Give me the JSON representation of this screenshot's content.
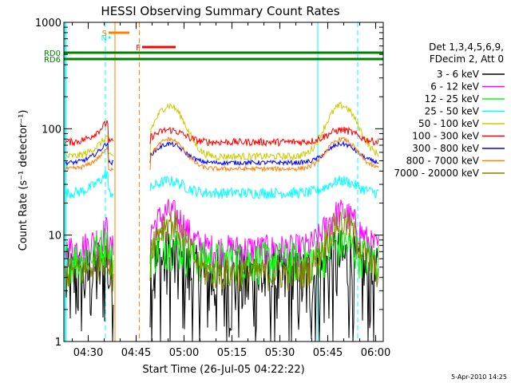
{
  "chart_data": {
    "type": "line",
    "title": "HESSI Observing Summary Count Rates",
    "xlabel": "Start Time (26-Jul-05 04:22:22)",
    "ylabel": "Count Rate (s⁻¹ detector⁻¹)",
    "ylog": true,
    "ylim": [
      1,
      1000
    ],
    "xlim_minutes_after_04_22_22": [
      0,
      100
    ],
    "yticks": [
      1,
      10,
      100,
      1000
    ],
    "ytick_labels": [
      "1",
      "10",
      "100",
      "1000"
    ],
    "xtick_labels": [
      "04:30",
      "04:45",
      "05:00",
      "05:15",
      "05:30",
      "05:45",
      "06:00"
    ],
    "xtick_minutes": [
      7.63,
      22.63,
      37.63,
      52.63,
      67.63,
      82.63,
      97.63
    ],
    "legend": {
      "placement": "right",
      "header1": "Det 1,3,4,5,6,9,",
      "header2": "FDecim 2, Att 0"
    },
    "series": [
      {
        "name": "3 - 6 keV",
        "color": "#000000",
        "base": 4.0,
        "noise": 0.9,
        "flare": 1.5
      },
      {
        "name": "6 - 12 keV",
        "color": "#ff00ff",
        "base": 7.5,
        "noise": 0.35,
        "flare": 2.2
      },
      {
        "name": "12 - 25 keV",
        "color": "#00ff00",
        "base": 6.0,
        "noise": 0.45,
        "flare": 1.4
      },
      {
        "name": "25 - 50 keV",
        "color": "#00ffff",
        "base": 25,
        "noise": 0.12,
        "flare": 1.3
      },
      {
        "name": "50 - 100 keV",
        "color": "#cccc00",
        "base": 55,
        "noise": 0.08,
        "flare": 3.0
      },
      {
        "name": "100 - 300 keV",
        "color": "#ff0000",
        "base": 75,
        "noise": 0.08,
        "flare": 1.3
      },
      {
        "name": "300 - 800 keV",
        "color": "#0000ff",
        "base": 48,
        "noise": 0.05,
        "flare": 1.5
      },
      {
        "name": "800 - 7000 keV",
        "color": "#ff8000",
        "base": 42,
        "noise": 0.05,
        "flare": 1.9
      },
      {
        "name": "7000 - 20000 keV",
        "color": "#808000",
        "base": 4.5,
        "noise": 0.35,
        "flare": 3.0
      }
    ],
    "flags": [
      {
        "label": "S",
        "color": "#ff8000",
        "start": 14.0,
        "end": 20.5
      },
      {
        "label": "N",
        "color": "#00ffff",
        "start": 14.0,
        "end": 14.6
      },
      {
        "label": "F",
        "color": "#ff0000",
        "start": 24.5,
        "end": 35.0
      },
      {
        "label": "RD0",
        "color": "#008000",
        "start": 0,
        "end": 100
      },
      {
        "label": "RD6",
        "color": "#008000",
        "start": 0,
        "end": 100
      }
    ],
    "night_intervals": [
      [
        16.0,
        23.6
      ]
    ],
    "saa_markers": [
      13.0,
      79.5,
      92.0
    ],
    "timestamp": "5-Apr-2010 14:25"
  }
}
